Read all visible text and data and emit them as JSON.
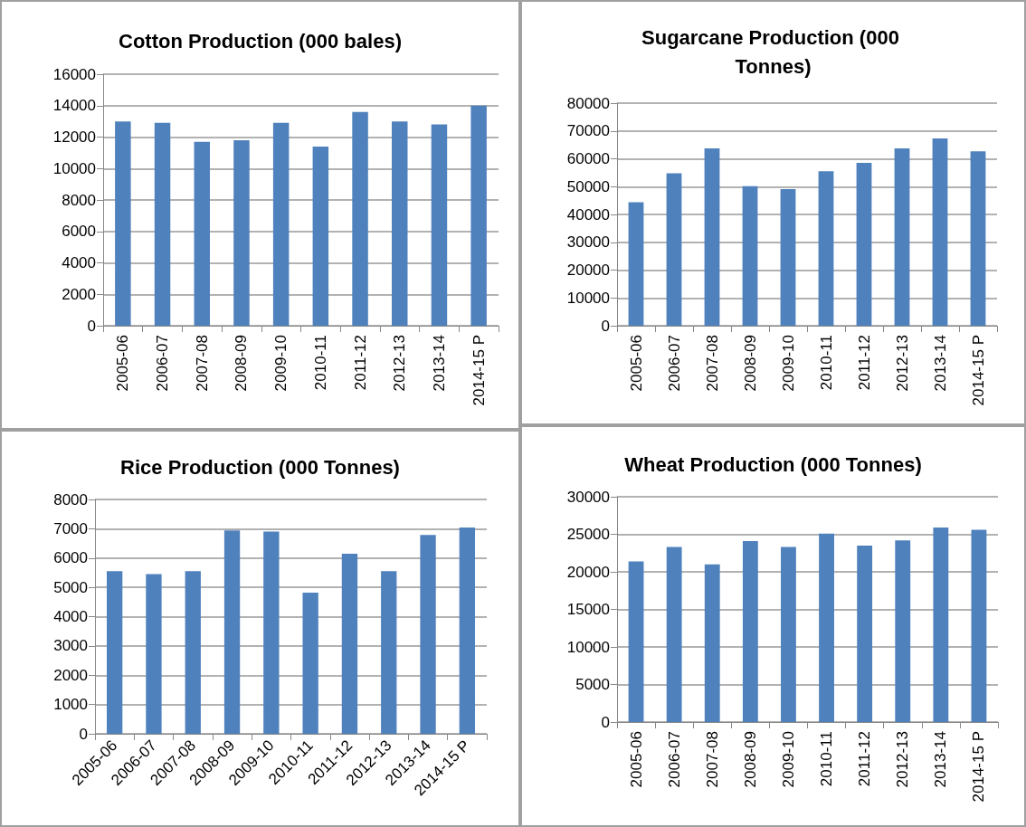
{
  "chart_data": [
    {
      "type": "bar",
      "title": "Cotton Production (000 bales)",
      "categories": [
        "2005-06",
        "2006-07",
        "2007-08",
        "2008-09",
        "2009-10",
        "2010-11",
        "2011-12",
        "2012-13",
        "2013-14",
        "2014-15 P"
      ],
      "values": [
        13000,
        12900,
        11700,
        11800,
        12900,
        11400,
        13600,
        13000,
        12800,
        14000
      ],
      "color": "#4f81bd",
      "ylim": [
        0,
        16000
      ],
      "yticks": [
        0,
        2000,
        4000,
        6000,
        8000,
        10000,
        12000,
        14000,
        16000
      ],
      "grid": "y"
    },
    {
      "type": "bar",
      "title": "Sugarcane Production (000 Tonnes)",
      "categories": [
        "2005-06",
        "2006-07",
        "2007-08",
        "2008-09",
        "2009-10",
        "2010-11",
        "2011-12",
        "2012-13",
        "2013-14",
        "2014-15 P"
      ],
      "values": [
        44400,
        54800,
        63700,
        50200,
        49100,
        55500,
        58500,
        63700,
        67300,
        62700
      ],
      "color": "#4f81bd",
      "ylim": [
        0,
        80000
      ],
      "yticks": [
        0,
        10000,
        20000,
        30000,
        40000,
        50000,
        60000,
        70000,
        80000
      ],
      "grid": "y"
    },
    {
      "type": "bar",
      "title": "Rice Production (000 Tonnes)",
      "categories": [
        "2005-06",
        "2006-07",
        "2007-08",
        "2008-09",
        "2009-10",
        "2010-11",
        "2011-12",
        "2012-13",
        "2013-14",
        "2014-15 P"
      ],
      "values": [
        5550,
        5450,
        5550,
        6940,
        6900,
        4820,
        6150,
        5550,
        6790,
        7040
      ],
      "color": "#4f81bd",
      "ylim": [
        0,
        8000
      ],
      "yticks": [
        0,
        1000,
        2000,
        3000,
        4000,
        5000,
        6000,
        7000,
        8000
      ],
      "grid": "y"
    },
    {
      "type": "bar",
      "title": "Wheat Production (000 Tonnes)",
      "categories": [
        "2005-06",
        "2006-07",
        "2007-08",
        "2008-09",
        "2009-10",
        "2010-11",
        "2011-12",
        "2012-13",
        "2013-14",
        "2014-15 P"
      ],
      "values": [
        21400,
        23300,
        21000,
        24100,
        23300,
        25100,
        23500,
        24200,
        25900,
        25600
      ],
      "color": "#4f81bd",
      "ylim": [
        0,
        30000
      ],
      "yticks": [
        0,
        5000,
        10000,
        15000,
        20000,
        25000,
        30000
      ],
      "grid": "y"
    }
  ]
}
